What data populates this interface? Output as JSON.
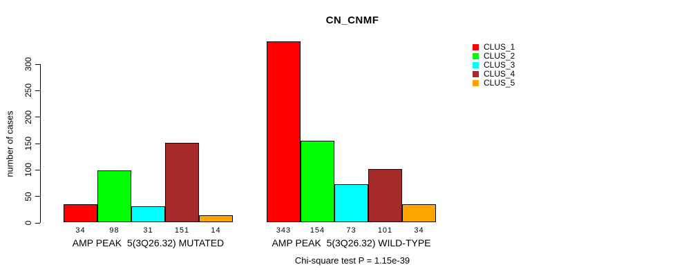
{
  "figure": {
    "background": "#ffffff",
    "text_color": "#000000"
  },
  "chart_data": {
    "type": "bar",
    "title": "CN_CNMF",
    "ylabel": "number of cases",
    "xlabel": "",
    "annotation": "Chi-square test P = 1.15e-39",
    "ylim": [
      0,
      300
    ],
    "yticks": [
      0,
      50,
      100,
      150,
      200,
      250,
      300
    ],
    "grid": false,
    "legend_position": "right",
    "bar_value_labels": true,
    "series": [
      {
        "name": "CLUS_1",
        "color": "#ff0000"
      },
      {
        "name": "CLUS_2",
        "color": "#00ff00"
      },
      {
        "name": "CLUS_3",
        "color": "#00ffff"
      },
      {
        "name": "CLUS_4",
        "color": "#a52a2a"
      },
      {
        "name": "CLUS_5",
        "color": "#ffa500"
      }
    ],
    "groups": [
      {
        "label": "AMP PEAK  5(3Q26.32) MUTATED",
        "values": [
          34,
          98,
          31,
          151,
          14
        ]
      },
      {
        "label": "AMP PEAK  5(3Q26.32) WILD-TYPE",
        "values": [
          343,
          154,
          73,
          101,
          34
        ]
      }
    ]
  }
}
